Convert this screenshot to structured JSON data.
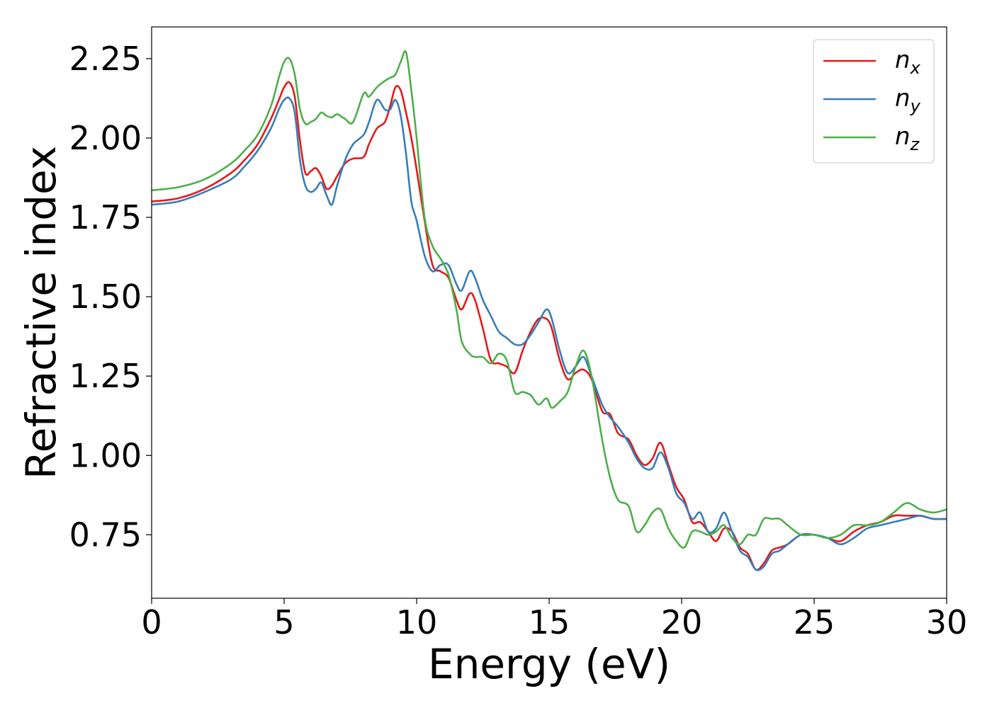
{
  "chart_data": {
    "type": "line",
    "xlabel": "Energy (eV)",
    "ylabel": "Refractive index",
    "xlim": [
      0,
      30
    ],
    "ylim": [
      0.55,
      2.35
    ],
    "xticks": [
      0,
      5,
      10,
      15,
      20,
      25,
      30
    ],
    "xtick_labels": [
      "0",
      "5",
      "10",
      "15",
      "20",
      "25",
      "30"
    ],
    "yticks": [
      0.75,
      1.0,
      1.25,
      1.5,
      1.75,
      2.0,
      2.25
    ],
    "ytick_labels": [
      "0.75",
      "1.00",
      "1.25",
      "1.50",
      "1.75",
      "2.00",
      "2.25"
    ],
    "grid": false,
    "legend_position": "top-right",
    "series": [
      {
        "name": "n_x",
        "label_base": "n",
        "label_sub": "x",
        "color": "#e41a1c",
        "x": [
          0,
          1,
          2,
          3,
          3.5,
          4,
          4.5,
          4.8,
          5.0,
          5.2,
          5.4,
          5.6,
          5.8,
          6.0,
          6.2,
          6.4,
          6.6,
          6.8,
          7.0,
          7.3,
          7.6,
          8.0,
          8.2,
          8.5,
          8.8,
          9.0,
          9.2,
          9.4,
          9.6,
          9.8,
          10.0,
          10.3,
          10.6,
          10.9,
          11.2,
          11.5,
          11.7,
          12.0,
          12.2,
          12.5,
          12.8,
          13.1,
          13.4,
          13.7,
          14.0,
          14.3,
          14.6,
          14.9,
          15.1,
          15.4,
          15.7,
          16.0,
          16.3,
          16.6,
          17.0,
          17.3,
          17.6,
          18.0,
          18.3,
          18.6,
          18.9,
          19.2,
          19.5,
          19.8,
          20.1,
          20.4,
          20.7,
          21.0,
          21.3,
          21.6,
          21.9,
          22.2,
          22.5,
          22.8,
          23.1,
          23.4,
          23.7,
          24.0,
          24.5,
          25.0,
          25.5,
          26.0,
          26.5,
          27.0,
          27.5,
          28.0,
          28.5,
          29.0,
          29.5,
          30.0
        ],
        "y": [
          1.8,
          1.81,
          1.84,
          1.89,
          1.93,
          1.98,
          2.06,
          2.12,
          2.16,
          2.175,
          2.13,
          1.99,
          1.89,
          1.895,
          1.905,
          1.88,
          1.84,
          1.85,
          1.88,
          1.92,
          1.935,
          1.94,
          1.98,
          2.03,
          2.05,
          2.1,
          2.16,
          2.15,
          2.08,
          2.0,
          1.9,
          1.74,
          1.6,
          1.58,
          1.56,
          1.49,
          1.46,
          1.51,
          1.49,
          1.4,
          1.3,
          1.29,
          1.28,
          1.26,
          1.33,
          1.39,
          1.43,
          1.43,
          1.4,
          1.3,
          1.24,
          1.26,
          1.27,
          1.24,
          1.14,
          1.13,
          1.07,
          1.05,
          1.0,
          0.97,
          0.99,
          1.04,
          0.97,
          0.9,
          0.86,
          0.79,
          0.79,
          0.76,
          0.73,
          0.77,
          0.76,
          0.71,
          0.69,
          0.64,
          0.66,
          0.7,
          0.71,
          0.72,
          0.75,
          0.75,
          0.74,
          0.73,
          0.76,
          0.78,
          0.79,
          0.81,
          0.81,
          0.81,
          0.8,
          0.8
        ]
      },
      {
        "name": "n_y",
        "label_base": "n",
        "label_sub": "y",
        "color": "#377eb8",
        "x": [
          0,
          1,
          2,
          3,
          3.5,
          4,
          4.5,
          4.8,
          5.0,
          5.2,
          5.4,
          5.6,
          5.8,
          6.0,
          6.2,
          6.4,
          6.6,
          6.8,
          7.0,
          7.3,
          7.6,
          8.0,
          8.2,
          8.5,
          8.8,
          9.0,
          9.2,
          9.4,
          9.6,
          9.8,
          10.0,
          10.3,
          10.6,
          10.9,
          11.2,
          11.5,
          11.7,
          12.0,
          12.2,
          12.5,
          12.8,
          13.1,
          13.4,
          13.7,
          14.0,
          14.3,
          14.6,
          14.9,
          15.1,
          15.4,
          15.7,
          16.0,
          16.3,
          16.6,
          17.0,
          17.3,
          17.6,
          18.0,
          18.3,
          18.6,
          18.9,
          19.2,
          19.5,
          19.8,
          20.1,
          20.4,
          20.7,
          21.0,
          21.3,
          21.6,
          21.9,
          22.2,
          22.5,
          22.8,
          23.1,
          23.4,
          23.7,
          24.0,
          24.5,
          25.0,
          25.5,
          26.0,
          26.5,
          27.0,
          27.5,
          28.0,
          28.5,
          29.0,
          29.5,
          30.0
        ],
        "y": [
          1.79,
          1.8,
          1.83,
          1.87,
          1.91,
          1.96,
          2.03,
          2.09,
          2.12,
          2.125,
          2.08,
          1.93,
          1.85,
          1.83,
          1.84,
          1.86,
          1.82,
          1.79,
          1.85,
          1.93,
          1.98,
          2.01,
          2.05,
          2.12,
          2.09,
          2.09,
          2.12,
          2.07,
          1.95,
          1.8,
          1.74,
          1.63,
          1.58,
          1.6,
          1.6,
          1.54,
          1.52,
          1.58,
          1.56,
          1.49,
          1.44,
          1.39,
          1.37,
          1.35,
          1.35,
          1.38,
          1.42,
          1.46,
          1.43,
          1.33,
          1.26,
          1.28,
          1.31,
          1.25,
          1.16,
          1.12,
          1.09,
          1.04,
          0.99,
          0.96,
          0.96,
          1.01,
          0.96,
          0.88,
          0.85,
          0.8,
          0.82,
          0.76,
          0.77,
          0.82,
          0.76,
          0.7,
          0.68,
          0.64,
          0.65,
          0.69,
          0.7,
          0.72,
          0.75,
          0.75,
          0.74,
          0.72,
          0.74,
          0.77,
          0.78,
          0.79,
          0.8,
          0.81,
          0.8,
          0.8
        ]
      },
      {
        "name": "n_z",
        "label_base": "n",
        "label_sub": "z",
        "color": "#4daf4a",
        "x": [
          0,
          1,
          2,
          3,
          3.5,
          4,
          4.5,
          4.8,
          5.0,
          5.2,
          5.4,
          5.6,
          5.8,
          6.0,
          6.2,
          6.4,
          6.6,
          6.8,
          7.0,
          7.3,
          7.6,
          8.0,
          8.2,
          8.5,
          8.8,
          9.0,
          9.2,
          9.4,
          9.6,
          9.8,
          10.0,
          10.3,
          10.6,
          10.9,
          11.2,
          11.5,
          11.7,
          12.0,
          12.2,
          12.5,
          12.8,
          13.1,
          13.4,
          13.7,
          14.0,
          14.3,
          14.6,
          14.9,
          15.1,
          15.4,
          15.7,
          16.0,
          16.3,
          16.6,
          17.0,
          17.3,
          17.6,
          18.0,
          18.3,
          18.6,
          18.9,
          19.2,
          19.5,
          19.8,
          20.1,
          20.4,
          20.7,
          21.0,
          21.3,
          21.6,
          21.9,
          22.2,
          22.5,
          22.8,
          23.1,
          23.4,
          23.7,
          24.0,
          24.5,
          25.0,
          25.5,
          26.0,
          26.5,
          27.0,
          27.5,
          28.0,
          28.5,
          29.0,
          29.5,
          30.0
        ],
        "y": [
          1.835,
          1.845,
          1.87,
          1.92,
          1.96,
          2.01,
          2.1,
          2.19,
          2.24,
          2.25,
          2.2,
          2.09,
          2.045,
          2.05,
          2.06,
          2.08,
          2.07,
          2.065,
          2.075,
          2.06,
          2.05,
          2.14,
          2.13,
          2.16,
          2.18,
          2.19,
          2.2,
          2.24,
          2.27,
          2.15,
          2.0,
          1.75,
          1.66,
          1.62,
          1.57,
          1.46,
          1.36,
          1.32,
          1.31,
          1.31,
          1.29,
          1.32,
          1.3,
          1.2,
          1.2,
          1.19,
          1.16,
          1.18,
          1.15,
          1.17,
          1.2,
          1.28,
          1.33,
          1.25,
          1.05,
          0.93,
          0.86,
          0.84,
          0.76,
          0.78,
          0.82,
          0.83,
          0.77,
          0.73,
          0.71,
          0.76,
          0.76,
          0.75,
          0.76,
          0.78,
          0.74,
          0.72,
          0.75,
          0.75,
          0.8,
          0.8,
          0.8,
          0.78,
          0.75,
          0.75,
          0.74,
          0.75,
          0.78,
          0.78,
          0.79,
          0.82,
          0.85,
          0.83,
          0.82,
          0.83
        ]
      }
    ]
  }
}
